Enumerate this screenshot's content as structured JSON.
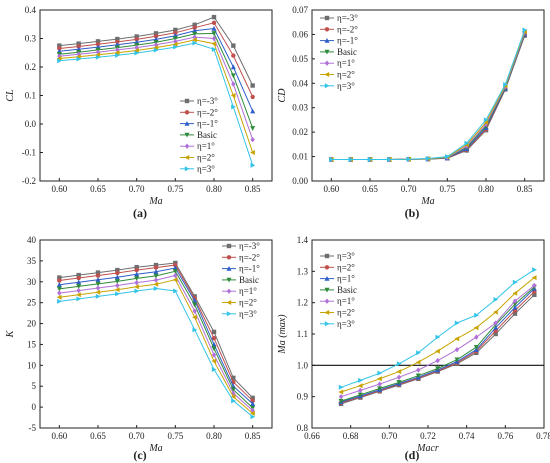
{
  "panel_labels": [
    "(a)",
    "(b)",
    "(c)",
    "(d)"
  ],
  "legend_names": [
    "η=-3°",
    "η=-2°",
    "η=-1°",
    "Basic",
    "η=1°",
    "η=2°",
    "η=3°"
  ],
  "legend_names_d": [
    "η=3°",
    "η=2°",
    "η=1°",
    "Basic",
    "η=1°",
    "η=2°",
    "η=3°"
  ],
  "colors": [
    "#6e6e6e",
    "#c0504d",
    "#2e5ec9",
    "#2e8b3b",
    "#b070d8",
    "#c9a400",
    "#33c4e8"
  ],
  "markers": [
    "square",
    "circle",
    "triangle-up",
    "triangle-down",
    "diamond",
    "triangle-left",
    "triangle-right"
  ],
  "chart_data": [
    {
      "type": "line",
      "panel": "(a)",
      "xlabel": "Ma",
      "ylabel": "CL",
      "xlim": [
        0.575,
        0.875
      ],
      "ylim": [
        -0.2,
        0.4
      ],
      "xticks": [
        0.6,
        0.65,
        0.7,
        0.75,
        0.8,
        0.85
      ],
      "yticks": [
        -0.2,
        -0.1,
        0.0,
        0.1,
        0.2,
        0.3,
        0.4
      ],
      "legend_position": "right",
      "series": [
        {
          "name": "η=-3°",
          "x": [
            0.6,
            0.625,
            0.65,
            0.675,
            0.7,
            0.725,
            0.75,
            0.775,
            0.8,
            0.825,
            0.85
          ],
          "y": [
            0.275,
            0.282,
            0.29,
            0.298,
            0.307,
            0.318,
            0.33,
            0.348,
            0.375,
            0.275,
            0.135
          ]
        },
        {
          "name": "η=-2°",
          "x": [
            0.6,
            0.625,
            0.65,
            0.675,
            0.7,
            0.725,
            0.75,
            0.775,
            0.8,
            0.825,
            0.85
          ],
          "y": [
            0.265,
            0.272,
            0.28,
            0.288,
            0.297,
            0.308,
            0.32,
            0.338,
            0.355,
            0.24,
            0.095
          ]
        },
        {
          "name": "η=-1°",
          "x": [
            0.6,
            0.625,
            0.65,
            0.675,
            0.7,
            0.725,
            0.75,
            0.775,
            0.8,
            0.825,
            0.85
          ],
          "y": [
            0.255,
            0.262,
            0.27,
            0.278,
            0.287,
            0.297,
            0.31,
            0.327,
            0.335,
            0.2,
            0.045
          ]
        },
        {
          "name": "Basic",
          "x": [
            0.6,
            0.625,
            0.65,
            0.675,
            0.7,
            0.725,
            0.75,
            0.775,
            0.8,
            0.825,
            0.85
          ],
          "y": [
            0.245,
            0.252,
            0.26,
            0.268,
            0.277,
            0.287,
            0.3,
            0.316,
            0.318,
            0.17,
            -0.015
          ]
        },
        {
          "name": "η=1°",
          "x": [
            0.6,
            0.625,
            0.65,
            0.675,
            0.7,
            0.725,
            0.75,
            0.775,
            0.8,
            0.825,
            0.85
          ],
          "y": [
            0.238,
            0.245,
            0.252,
            0.26,
            0.268,
            0.278,
            0.29,
            0.305,
            0.3,
            0.14,
            -0.055
          ]
        },
        {
          "name": "η=2°",
          "x": [
            0.6,
            0.625,
            0.65,
            0.675,
            0.7,
            0.725,
            0.75,
            0.775,
            0.8,
            0.825,
            0.85
          ],
          "y": [
            0.23,
            0.236,
            0.243,
            0.25,
            0.258,
            0.268,
            0.28,
            0.295,
            0.282,
            0.1,
            -0.1
          ]
        },
        {
          "name": "η=3°",
          "x": [
            0.6,
            0.625,
            0.65,
            0.675,
            0.7,
            0.725,
            0.75,
            0.775,
            0.8,
            0.825,
            0.85
          ],
          "y": [
            0.222,
            0.228,
            0.234,
            0.241,
            0.249,
            0.259,
            0.27,
            0.284,
            0.262,
            0.06,
            -0.145
          ]
        }
      ]
    },
    {
      "type": "line",
      "panel": "(b)",
      "xlabel": "Ma",
      "ylabel": "CD",
      "xlim": [
        0.575,
        0.875
      ],
      "ylim": [
        0.0,
        0.07
      ],
      "xticks": [
        0.6,
        0.65,
        0.7,
        0.75,
        0.8,
        0.85
      ],
      "yticks": [
        0.0,
        0.01,
        0.02,
        0.03,
        0.04,
        0.05,
        0.06,
        0.07
      ],
      "legend_position": "top-left",
      "series": [
        {
          "name": "η=-3°",
          "x": [
            0.6,
            0.625,
            0.65,
            0.675,
            0.7,
            0.725,
            0.75,
            0.775,
            0.8,
            0.825,
            0.85
          ],
          "y": [
            0.0088,
            0.0088,
            0.0088,
            0.0088,
            0.0089,
            0.009,
            0.0093,
            0.0125,
            0.0208,
            0.0375,
            0.0595
          ]
        },
        {
          "name": "η=-2°",
          "x": [
            0.6,
            0.625,
            0.65,
            0.675,
            0.7,
            0.725,
            0.75,
            0.775,
            0.8,
            0.825,
            0.85
          ],
          "y": [
            0.0088,
            0.0088,
            0.0088,
            0.0088,
            0.0089,
            0.009,
            0.0093,
            0.0128,
            0.0212,
            0.0377,
            0.0597
          ]
        },
        {
          "name": "η=-1°",
          "x": [
            0.6,
            0.625,
            0.65,
            0.675,
            0.7,
            0.725,
            0.75,
            0.775,
            0.8,
            0.825,
            0.85
          ],
          "y": [
            0.0088,
            0.0088,
            0.0088,
            0.0088,
            0.0089,
            0.009,
            0.0094,
            0.0132,
            0.0218,
            0.0379,
            0.06
          ]
        },
        {
          "name": "Basic",
          "x": [
            0.6,
            0.625,
            0.65,
            0.675,
            0.7,
            0.725,
            0.75,
            0.775,
            0.8,
            0.825,
            0.85
          ],
          "y": [
            0.0088,
            0.0088,
            0.0088,
            0.0088,
            0.0089,
            0.009,
            0.0095,
            0.0137,
            0.0225,
            0.0382,
            0.0603
          ]
        },
        {
          "name": "η=1°",
          "x": [
            0.6,
            0.625,
            0.65,
            0.675,
            0.7,
            0.725,
            0.75,
            0.775,
            0.8,
            0.825,
            0.85
          ],
          "y": [
            0.0088,
            0.0088,
            0.0088,
            0.0088,
            0.0089,
            0.0091,
            0.0096,
            0.0142,
            0.0232,
            0.0386,
            0.0607
          ]
        },
        {
          "name": "η=2°",
          "x": [
            0.6,
            0.625,
            0.65,
            0.675,
            0.7,
            0.725,
            0.75,
            0.775,
            0.8,
            0.825,
            0.85
          ],
          "y": [
            0.0088,
            0.0088,
            0.0088,
            0.0088,
            0.0089,
            0.0091,
            0.0098,
            0.0148,
            0.024,
            0.039,
            0.0612
          ]
        },
        {
          "name": "η=3°",
          "x": [
            0.6,
            0.625,
            0.65,
            0.675,
            0.7,
            0.725,
            0.75,
            0.775,
            0.8,
            0.825,
            0.85
          ],
          "y": [
            0.0088,
            0.0088,
            0.0088,
            0.0088,
            0.0089,
            0.0092,
            0.01,
            0.0155,
            0.025,
            0.0395,
            0.0618
          ]
        }
      ]
    },
    {
      "type": "line",
      "panel": "(c)",
      "xlabel": "Ma",
      "ylabel": "K",
      "xlim": [
        0.575,
        0.875
      ],
      "ylim": [
        -5,
        40
      ],
      "xticks": [
        0.6,
        0.65,
        0.7,
        0.75,
        0.8,
        0.85
      ],
      "yticks": [
        -5,
        0,
        5,
        10,
        15,
        20,
        25,
        30,
        35,
        40
      ],
      "legend_position": "top-right",
      "series": [
        {
          "name": "η=-3°",
          "x": [
            0.6,
            0.625,
            0.65,
            0.675,
            0.7,
            0.725,
            0.75,
            0.775,
            0.8,
            0.825,
            0.85
          ],
          "y": [
            31.0,
            31.6,
            32.2,
            32.8,
            33.5,
            34.0,
            34.5,
            26.5,
            18.0,
            7.0,
            2.2
          ]
        },
        {
          "name": "η=-2°",
          "x": [
            0.6,
            0.625,
            0.65,
            0.675,
            0.7,
            0.725,
            0.75,
            0.775,
            0.8,
            0.825,
            0.85
          ],
          "y": [
            30.3,
            30.9,
            31.5,
            32.1,
            32.8,
            33.4,
            34.0,
            26.0,
            16.5,
            6.0,
            1.5
          ]
        },
        {
          "name": "η=-1°",
          "x": [
            0.6,
            0.625,
            0.65,
            0.675,
            0.7,
            0.725,
            0.75,
            0.775,
            0.8,
            0.825,
            0.85
          ],
          "y": [
            29.3,
            29.9,
            30.5,
            31.1,
            31.8,
            32.4,
            33.3,
            25.5,
            15.0,
            5.0,
            0.8
          ]
        },
        {
          "name": "Basic",
          "x": [
            0.6,
            0.625,
            0.65,
            0.675,
            0.7,
            0.725,
            0.75,
            0.775,
            0.8,
            0.825,
            0.85
          ],
          "y": [
            28.3,
            28.9,
            29.5,
            30.1,
            30.8,
            31.4,
            32.5,
            24.5,
            14.0,
            4.2,
            -0.2
          ]
        },
        {
          "name": "η=1°",
          "x": [
            0.6,
            0.625,
            0.65,
            0.675,
            0.7,
            0.725,
            0.75,
            0.775,
            0.8,
            0.825,
            0.85
          ],
          "y": [
            27.3,
            27.9,
            28.5,
            29.1,
            29.8,
            30.4,
            31.5,
            23.0,
            12.5,
            3.3,
            -0.8
          ]
        },
        {
          "name": "η=2°",
          "x": [
            0.6,
            0.625,
            0.65,
            0.675,
            0.7,
            0.725,
            0.75,
            0.775,
            0.8,
            0.825,
            0.85
          ],
          "y": [
            26.3,
            26.9,
            27.5,
            28.1,
            28.8,
            29.4,
            30.5,
            21.5,
            11.0,
            2.5,
            -1.5
          ]
        },
        {
          "name": "η=3°",
          "x": [
            0.6,
            0.625,
            0.65,
            0.675,
            0.7,
            0.725,
            0.75,
            0.775,
            0.8,
            0.825,
            0.85
          ],
          "y": [
            25.3,
            25.9,
            26.5,
            27.1,
            27.8,
            28.4,
            27.8,
            18.5,
            9.0,
            1.5,
            -2.3
          ]
        }
      ]
    },
    {
      "type": "line",
      "panel": "(d)",
      "xlabel": "Macr",
      "ylabel": "Ma (max)",
      "xlim": [
        0.66,
        0.78
      ],
      "ylim": [
        0.8,
        1.4
      ],
      "xticks": [
        0.66,
        0.68,
        0.7,
        0.72,
        0.74,
        0.76,
        0.78
      ],
      "yticks": [
        0.8,
        0.9,
        1.0,
        1.1,
        1.2,
        1.3,
        1.4
      ],
      "reference_line_y": 1.0,
      "legend_position": "top-left",
      "series": [
        {
          "name": "η=3°",
          "x": [
            0.675,
            0.685,
            0.695,
            0.705,
            0.715,
            0.725,
            0.735,
            0.745,
            0.755,
            0.765,
            0.775
          ],
          "y": [
            0.877,
            0.897,
            0.917,
            0.937,
            0.957,
            0.98,
            1.005,
            1.04,
            1.1,
            1.165,
            1.225
          ]
        },
        {
          "name": "η=2°",
          "x": [
            0.675,
            0.685,
            0.695,
            0.705,
            0.715,
            0.725,
            0.735,
            0.745,
            0.755,
            0.765,
            0.775
          ],
          "y": [
            0.88,
            0.899,
            0.919,
            0.939,
            0.959,
            0.982,
            1.008,
            1.045,
            1.11,
            1.175,
            1.235
          ]
        },
        {
          "name": "η=1°",
          "x": [
            0.675,
            0.685,
            0.695,
            0.705,
            0.715,
            0.725,
            0.735,
            0.745,
            0.755,
            0.765,
            0.775
          ],
          "y": [
            0.883,
            0.902,
            0.922,
            0.942,
            0.962,
            0.985,
            1.012,
            1.05,
            1.12,
            1.185,
            1.245
          ]
        },
        {
          "name": "Basic",
          "x": [
            0.675,
            0.685,
            0.695,
            0.705,
            0.715,
            0.725,
            0.735,
            0.745,
            0.755,
            0.765,
            0.775
          ],
          "y": [
            0.886,
            0.906,
            0.926,
            0.946,
            0.967,
            0.99,
            1.018,
            1.058,
            1.13,
            1.195,
            1.25
          ]
        },
        {
          "name": "η=1°",
          "x": [
            0.675,
            0.685,
            0.695,
            0.705,
            0.715,
            0.725,
            0.735,
            0.745,
            0.755,
            0.765,
            0.775
          ],
          "y": [
            0.9,
            0.92,
            0.94,
            0.962,
            0.985,
            1.015,
            1.05,
            1.09,
            1.135,
            1.205,
            1.255
          ]
        },
        {
          "name": "η=2°",
          "x": [
            0.675,
            0.685,
            0.695,
            0.705,
            0.715,
            0.725,
            0.735,
            0.745,
            0.755,
            0.765,
            0.775
          ],
          "y": [
            0.915,
            0.935,
            0.957,
            0.98,
            1.01,
            1.045,
            1.085,
            1.12,
            1.17,
            1.23,
            1.28
          ]
        },
        {
          "name": "η=3°",
          "x": [
            0.675,
            0.685,
            0.695,
            0.705,
            0.715,
            0.725,
            0.735,
            0.745,
            0.755,
            0.765,
            0.775
          ],
          "y": [
            0.93,
            0.952,
            0.975,
            1.005,
            1.04,
            1.09,
            1.135,
            1.16,
            1.21,
            1.265,
            1.305
          ]
        }
      ]
    }
  ]
}
